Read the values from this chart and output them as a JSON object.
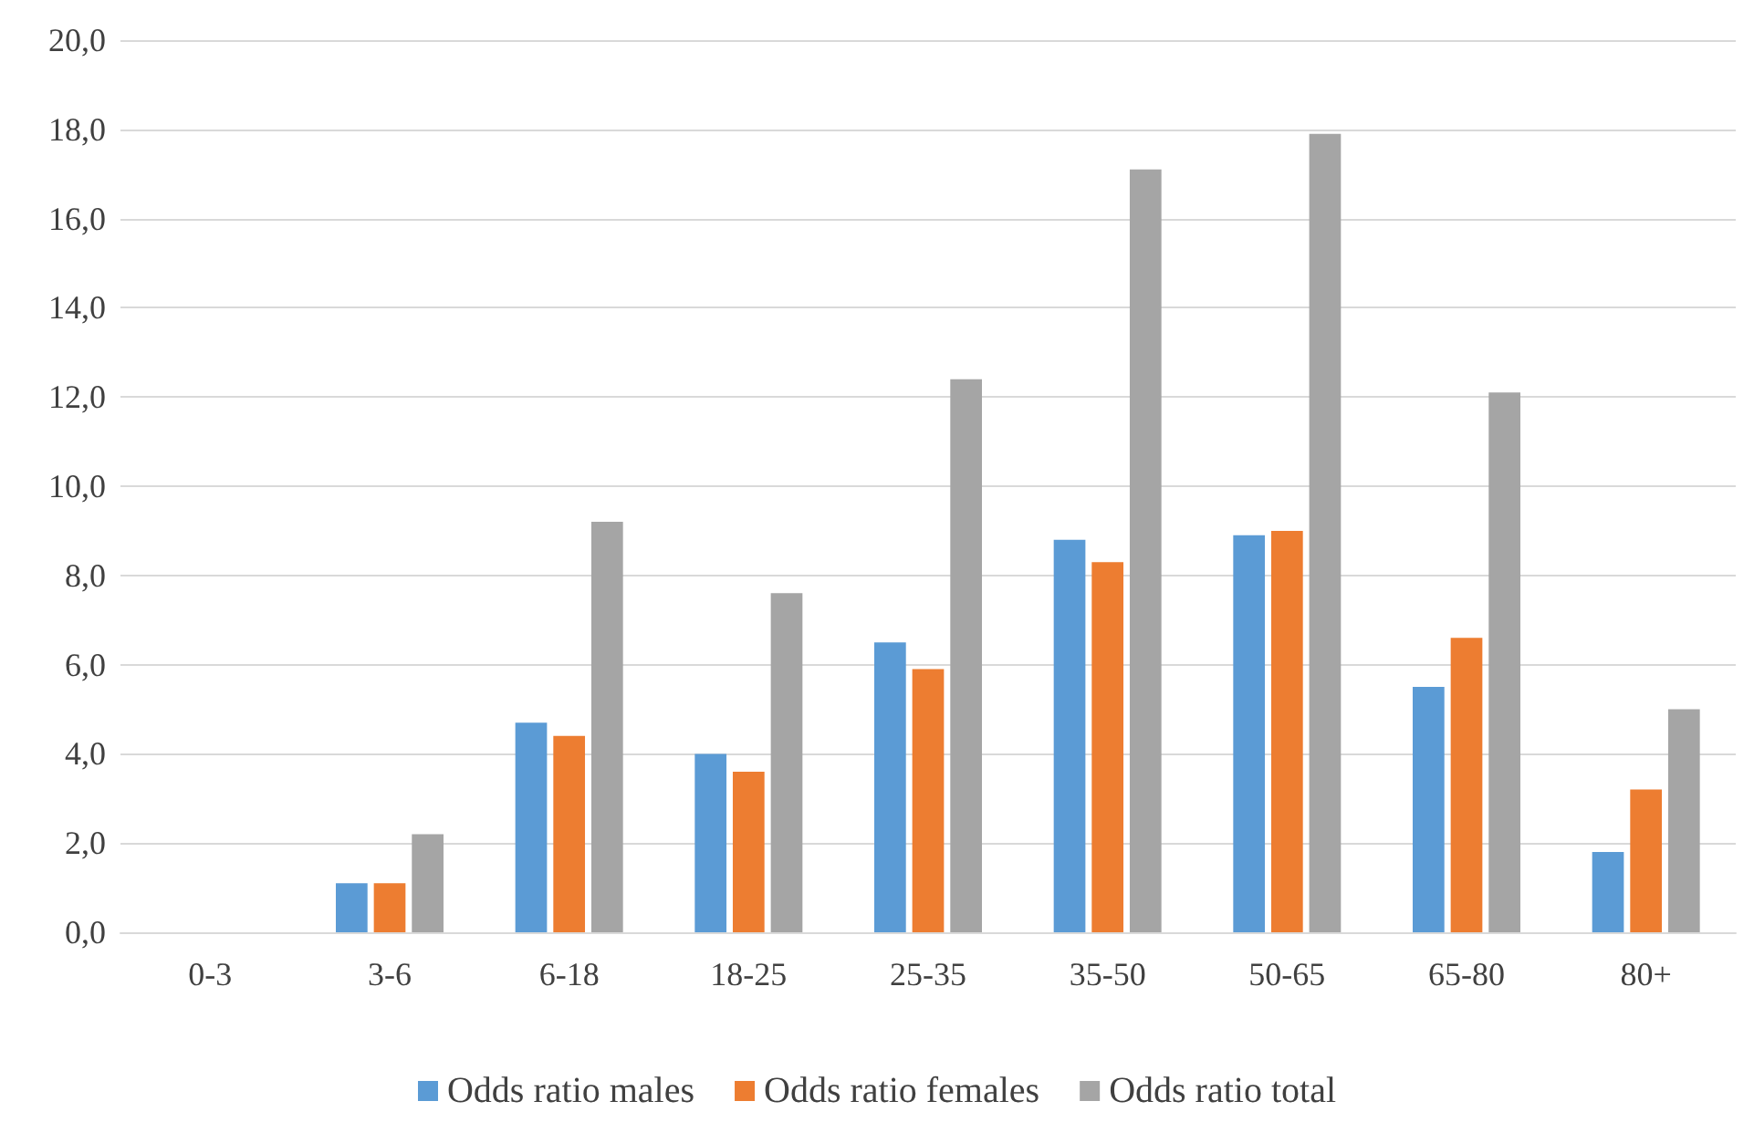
{
  "chart_data": {
    "type": "bar",
    "categories": [
      "0-3",
      "3-6",
      "6-18",
      "18-25",
      "25-35",
      "35-50",
      "50-65",
      "65-80",
      "80+"
    ],
    "series": [
      {
        "name": "Odds ratio males",
        "color": "#5b9bd5",
        "values": [
          0,
          1.1,
          4.7,
          4.0,
          6.5,
          8.8,
          8.9,
          5.5,
          1.8
        ]
      },
      {
        "name": "Odds ratio females",
        "color": "#ed7d31",
        "values": [
          0,
          1.1,
          4.4,
          3.6,
          5.9,
          8.3,
          9.0,
          6.6,
          3.2
        ]
      },
      {
        "name": "Odds ratio total",
        "color": "#a5a5a5",
        "values": [
          0,
          2.2,
          9.2,
          7.6,
          12.4,
          17.1,
          17.9,
          12.1,
          5.0
        ]
      }
    ],
    "ylim": [
      0,
      20
    ],
    "yticks": [
      {
        "value": 0,
        "label": "0,0"
      },
      {
        "value": 2,
        "label": "2,0"
      },
      {
        "value": 4,
        "label": "4,0"
      },
      {
        "value": 6,
        "label": "6,0"
      },
      {
        "value": 8,
        "label": "8,0"
      },
      {
        "value": 10,
        "label": "10,0"
      },
      {
        "value": 12,
        "label": "12,0"
      },
      {
        "value": 14,
        "label": "14,0"
      },
      {
        "value": 16,
        "label": "16,0"
      },
      {
        "value": 18,
        "label": "18,0"
      },
      {
        "value": 20,
        "label": "20,0"
      }
    ],
    "grid": "y",
    "legend": "bottom"
  }
}
